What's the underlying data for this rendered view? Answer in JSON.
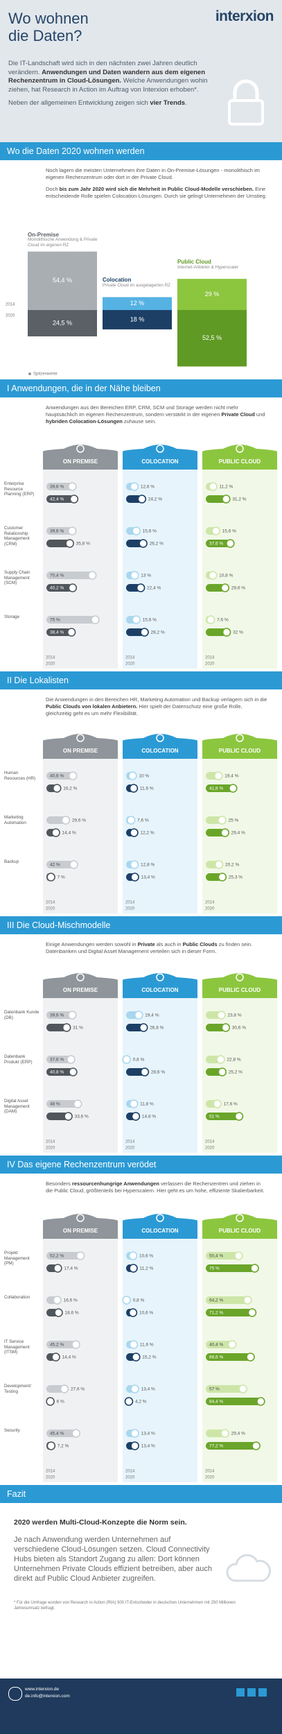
{
  "header": {
    "title": "Wo wohnen die Daten?",
    "logo": "interxion",
    "paragraphs": [
      [
        "Die IT-Landschaft wird sich in den nächsten zwei Jahren deutlich verändern. ",
        {
          "text": "Anwendungen und Daten wandern aus dem eigenen Rechenzentrum in Cloud-Lösungen."
        },
        " Welche Anwendungen wohin ziehen, hat Research in Action im Auftrag von Interxion erhoben*."
      ],
      [
        "Neben der allgemeinen Entwicklung zeigen sich ",
        {
          "text": "vier Trends"
        },
        "."
      ]
    ]
  },
  "chart_data": [
    {
      "type": "mirror-bar",
      "title": "Wo die Daten 2020 wohnen werden",
      "text": [
        [
          "Noch lagern die meisten Unternehmen ihre Daten in On-Premise-Lösungen - monolithisch im eigenen Rechenzentrum oder dort in der Private Cloud."
        ],
        [
          "Doch ",
          {
            "text": "bis zum Jahr 2020 wird sich die Mehrheit in Public Cloud-Modelle verschieben."
          },
          " Eine entscheidende Rolle spielen Colocation-Lösungen. Durch sie gelingt Unternehmen der Umstieg."
        ]
      ],
      "categories": [
        "On-Premise",
        "Colocation",
        "Public Cloud"
      ],
      "category_notes": [
        "Monolithische Anwendung & Private Cloud im eigenen RZ",
        "Private Cloud im ausgelagerten RZ",
        "Internet-Anbieter & Hyperscaler"
      ],
      "series": [
        {
          "name": "2014",
          "colors": [
            "#a9aeb2",
            "#55b2e3",
            "#8cc63f"
          ],
          "values": [
            54.4,
            12,
            29
          ],
          "value_labels": [
            "54,4 %",
            "12 %",
            "29 %"
          ]
        },
        {
          "name": "2020",
          "colors": [
            "#5a6066",
            "#1d3f66",
            "#5f9a24"
          ],
          "values": [
            24.5,
            18,
            52.5
          ],
          "value_labels": [
            "24,5 %",
            "18 %",
            "52,5 %"
          ]
        }
      ],
      "note": "Spitzenwerte"
    },
    {
      "type": "panel-bar",
      "title": "I Anwendungen, die in der Nähe bleiben",
      "text": [
        [
          "Anwendungen aus den Bereichen ERP, CRM, SCM und Storage werden nicht mehr hauptsächlich im eigenen Rechenzentrum, sondern verstärkt in der eigenen ",
          {
            "text": "Private Cloud"
          },
          " und ",
          {
            "text": "hybriden Colocation-Lösungen"
          },
          " zuhause sein."
        ]
      ],
      "categories": [
        "Enterprise Resource Planning (ERP)",
        "Customer Relationship Management (CRM)",
        "Supply Chain Management (SCM)",
        "Storage"
      ],
      "xlim": [
        0,
        100
      ],
      "panels": [
        {
          "name": "ON PREMISE",
          "color": "#8f959a",
          "series": [
            {
              "name": "2014",
              "color": "#c8ccd0",
              "values": [
                39.6,
                39.6,
                70.4,
                75
              ],
              "value_labels": [
                "39,6 %",
                "39,6 %",
                "70,4 %",
                "75 %"
              ]
            },
            {
              "name": "2020",
              "color": "#4f565c",
              "values": [
                42.4,
                35.8,
                40.2,
                38.4
              ],
              "value_labels": [
                "42,4 %",
                "35,8 %",
                "40,2 %",
                "38,4 %"
              ]
            }
          ]
        },
        {
          "name": "COLOCATION",
          "color": "#2b9ad4",
          "series": [
            {
              "name": "2014",
              "color": "#a9d7ef",
              "values": [
                12.6,
                15.6,
                13,
                15.6
              ],
              "value_labels": [
                "12,6 %",
                "15,6 %",
                "13 %",
                "15,6 %"
              ]
            },
            {
              "name": "2020",
              "color": "#1d3f66",
              "values": [
                24.2,
                26.2,
                22.4,
                28.2
              ],
              "value_labels": [
                "24,2 %",
                "26,2 %",
                "22,4 %",
                "28,2 %"
              ]
            }
          ]
        },
        {
          "name": "PUBLIC CLOUD",
          "color": "#8cc63f",
          "series": [
            {
              "name": "2014",
              "color": "#cde6a8",
              "values": [
                11.2,
                15.6,
                10.8,
                7.6
              ],
              "value_labels": [
                "11,2 %",
                "15,6 %",
                "10,8 %",
                "7,6 %"
              ]
            },
            {
              "name": "2020",
              "color": "#6aa52a",
              "values": [
                31.2,
                37.6,
                29.6,
                32
              ],
              "value_labels": [
                "31,2 %",
                "37,6 %",
                "29,6 %",
                "32 %"
              ]
            }
          ]
        }
      ]
    },
    {
      "type": "panel-bar",
      "title": "II Die Lokalisten",
      "text": [
        [
          "Die Anwendungen in den Bereichen HR, Marketing Automation und Backup verlagern sich in die ",
          {
            "text": "Public Clouds von lokalen Anbietern."
          },
          " Hier spielt der Datenschutz eine große Rolle, gleichzeitig geht es um mehr Flexibilität."
        ]
      ],
      "categories": [
        "Human Resources (HR)",
        "Marketing Automation",
        "Backup"
      ],
      "xlim": [
        0,
        100
      ],
      "panels": [
        {
          "name": "ON PREMISE",
          "color": "#8f959a",
          "series": [
            {
              "name": "2014",
              "color": "#c8ccd0",
              "values": [
                40.6,
                29.6,
                42
              ],
              "value_labels": [
                "40,6 %",
                "29,6 %",
                "42 %"
              ]
            },
            {
              "name": "2020",
              "color": "#4f565c",
              "values": [
                16.2,
                14.4,
                7
              ],
              "value_labels": [
                "16,2 %",
                "14,4 %",
                "7 %"
              ]
            }
          ]
        },
        {
          "name": "COLOCATION",
          "color": "#2b9ad4",
          "series": [
            {
              "name": "2014",
              "color": "#a9d7ef",
              "values": [
                10,
                7.6,
                12.8
              ],
              "value_labels": [
                "10 %",
                "7,6 %",
                "12,8 %"
              ]
            },
            {
              "name": "2020",
              "color": "#1d3f66",
              "values": [
                11.6,
                12.2,
                13.4
              ],
              "value_labels": [
                "11,6 %",
                "12,2 %",
                "13,4 %"
              ]
            }
          ]
        },
        {
          "name": "PUBLIC CLOUD",
          "color": "#8cc63f",
          "series": [
            {
              "name": "2014",
              "color": "#cde6a8",
              "values": [
                19.4,
                25,
                20.2
              ],
              "value_labels": [
                "19,4 %",
                "25 %",
                "20,2 %"
              ]
            },
            {
              "name": "2020",
              "color": "#6aa52a",
              "values": [
                41.8,
                29.4,
                25.3
              ],
              "value_labels": [
                "41,8 %",
                "29,4 %",
                "25,3 %"
              ]
            }
          ]
        }
      ]
    },
    {
      "type": "panel-bar",
      "title": "III Die Cloud-Mischmodelle",
      "text": [
        [
          "Einige Anwendungen werden sowohl in ",
          {
            "text": "Private"
          },
          " als auch in ",
          {
            "text": "Public Clouds"
          },
          " zu finden sein. Datenbanken und Digital Asset Management verteilen sich in dieser Form."
        ]
      ],
      "categories": [
        "Datenbank Kunde (DB)",
        "Datenbank Produkt (ERP)",
        "Digital Asset Management (DAM)"
      ],
      "xlim": [
        0,
        100
      ],
      "panels": [
        {
          "name": "ON PREMISE",
          "color": "#8f959a",
          "series": [
            {
              "name": "2014",
              "color": "#c8ccd0",
              "values": [
                39.6,
                37.6,
                48
              ],
              "value_labels": [
                "39,6 %",
                "37,6 %",
                "48 %"
              ]
            },
            {
              "name": "2020",
              "color": "#4f565c",
              "values": [
                31,
                40.8,
                33.6
              ],
              "value_labels": [
                "31 %",
                "40,8 %",
                "33,6 %"
              ]
            }
          ]
        },
        {
          "name": "COLOCATION",
          "color": "#2b9ad4",
          "series": [
            {
              "name": "2014",
              "color": "#a9d7ef",
              "values": [
                19.4,
                0.8,
                11.8
              ],
              "value_labels": [
                "19,4 %",
                "0,8 %",
                "11,8 %"
              ]
            },
            {
              "name": "2020",
              "color": "#1d3f66",
              "values": [
                26.8,
                28.6,
                14.8
              ],
              "value_labels": [
                "26,8 %",
                "28,6 %",
                "14,8 %"
              ]
            }
          ]
        },
        {
          "name": "PUBLIC CLOUD",
          "color": "#8cc63f",
          "series": [
            {
              "name": "2014",
              "color": "#cde6a8",
              "values": [
                23.8,
                22.8,
                17.6
              ],
              "value_labels": [
                "23,8 %",
                "22,8 %",
                "17,6 %"
              ]
            },
            {
              "name": "2020",
              "color": "#6aa52a",
              "values": [
                30.6,
                25.2,
                51
              ],
              "value_labels": [
                "30,6 %",
                "25,2 %",
                "51 %"
              ]
            }
          ]
        }
      ]
    },
    {
      "type": "panel-bar",
      "title": "IV Das eigene Rechenzentrum verödet",
      "text": [
        [
          "Besonders ",
          {
            "text": "ressourcenhungrige Anwendungen"
          },
          " verlassen die Rechenzentren und ziehen in die Public Cloud, größtenteils bei Hyperscalern. Hier geht es um hohe, effiziente Skalierbarkeit."
        ]
      ],
      "categories": [
        "Projekt Management (PM)",
        "Collaboration",
        "IT Service Management (ITSM)",
        "Development/ Testing",
        "Security"
      ],
      "xlim": [
        0,
        100
      ],
      "panels": [
        {
          "name": "ON PREMISE",
          "color": "#8f959a",
          "series": [
            {
              "name": "2014",
              "color": "#c8ccd0",
              "values": [
                52.2,
                16.6,
                45.2,
                27.6,
                45.4
              ],
              "value_labels": [
                "52,2 %",
                "16,6 %",
                "45,2 %",
                "27,6 %",
                "45,4 %"
              ]
            },
            {
              "name": "2020",
              "color": "#4f565c",
              "values": [
                17.4,
                18.6,
                14.4,
                6,
                7.2
              ],
              "value_labels": [
                "17,4 %",
                "18,6 %",
                "14,4 %",
                "6 %",
                "7,2 %"
              ]
            }
          ]
        },
        {
          "name": "COLOCATION",
          "color": "#2b9ad4",
          "series": [
            {
              "name": "2014",
              "color": "#a9d7ef",
              "values": [
                10.6,
                0.8,
                11.6,
                13.4,
                13.4
              ],
              "value_labels": [
                "10,6 %",
                "0,8 %",
                "11,6 %",
                "13,4 %",
                "13,4 %"
              ]
            },
            {
              "name": "2020",
              "color": "#1d3f66",
              "values": [
                11.2,
                10.6,
                15.2,
                4.2,
                13.4
              ],
              "value_labels": [
                "11,2 %",
                "10,6 %",
                "15,2 %",
                "4,2 %",
                "13,4 %"
              ]
            }
          ]
        },
        {
          "name": "PUBLIC CLOUD",
          "color": "#8cc63f",
          "series": [
            {
              "name": "2014",
              "color": "#cde6a8",
              "values": [
                50.4,
                64.2,
                40.4,
                57,
                29.4
              ],
              "value_labels": [
                "50,4 %",
                "64,2 %",
                "40,4 %",
                "57 %",
                "29,4 %"
              ]
            },
            {
              "name": "2020",
              "color": "#6aa52a",
              "values": [
                75,
                71.2,
                68.6,
                84.4,
                77.2
              ],
              "value_labels": [
                "75 %",
                "71,2 %",
                "68,6 %",
                "84,4 %",
                "77,2 %"
              ]
            }
          ]
        }
      ]
    }
  ],
  "conclusion": {
    "title": "Fazit",
    "heading": "2020 werden Multi-Cloud-Konzepte die Norm sein.",
    "text": "Je nach Anwendung werden Unternehmen auf verschiedene Cloud-Lösungen setzen. Cloud Connectivity Hubs bieten als Standort Zugang zu allen: Dort können Unternehmen Private Clouds effizient betreiben, aber auch direkt auf Public Cloud Anbieter zugreifen.",
    "footnote": "* Für die Umfrage wurden von Research in Action (RIA) 500 IT-Entscheider in deutschen Unternehmen mit 250 Millionen Jahresumsatz befragt."
  },
  "footer": {
    "website": "www.interxion.de",
    "email": "de.info@interxion.com"
  }
}
